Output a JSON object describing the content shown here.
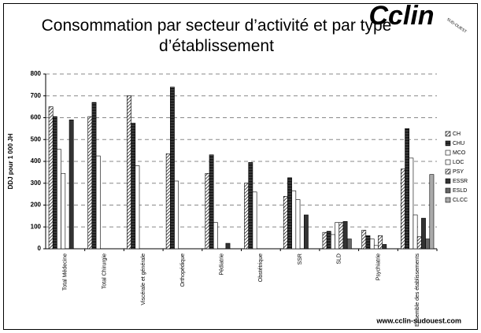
{
  "chart_data": {
    "type": "bar",
    "title": "Consommation par secteur d’activité et par type d’établissement",
    "y_label": "DDJ pour 1 000 JH",
    "categories": [
      "Total Médecine",
      "Total Chirurgie",
      "Viscérale et générale",
      "Orthopédique",
      "Pédiatrie",
      "Obstétrique",
      "SSR",
      "SLD",
      "Psychiatrie",
      "Ensemble des établissements"
    ],
    "series": [
      {
        "name": "CH",
        "color": "#ffffff",
        "pattern": "diagonal",
        "values": [
          650,
          605,
          700,
          435,
          345,
          300,
          240,
          75,
          85,
          365
        ]
      },
      {
        "name": "CHU",
        "color": "#555555",
        "pattern": "horizontal",
        "values": [
          605,
          670,
          575,
          740,
          430,
          395,
          325,
          80,
          60,
          550
        ]
      },
      {
        "name": "MCO",
        "color": "#ffffff",
        "values": [
          455,
          425,
          380,
          310,
          120,
          260,
          265,
          65,
          45,
          415
        ]
      },
      {
        "name": "LOC",
        "color": "#ffffff",
        "values": [
          345,
          null,
          null,
          null,
          null,
          null,
          225,
          120,
          15,
          155
        ]
      },
      {
        "name": "PSY",
        "color": "#ffffff",
        "pattern": "diagonal",
        "values": [
          null,
          null,
          null,
          null,
          null,
          null,
          null,
          120,
          60,
          55
        ]
      },
      {
        "name": "ESSR",
        "color": "#333333",
        "values": [
          590,
          null,
          null,
          null,
          25,
          null,
          155,
          125,
          20,
          140
        ]
      },
      {
        "name": "ESLD",
        "color": "#666666",
        "values": [
          null,
          null,
          null,
          null,
          null,
          null,
          null,
          45,
          null,
          45
        ]
      },
      {
        "name": "CLCC",
        "color": "#aaaaaa",
        "values": [
          null,
          null,
          null,
          null,
          null,
          null,
          null,
          null,
          null,
          340
        ]
      }
    ],
    "ylim": [
      0,
      800
    ],
    "yticks": [
      0,
      100,
      200,
      300,
      400,
      500,
      600,
      700,
      800
    ],
    "grid": true,
    "legend": "right"
  },
  "logo": {
    "text": "Cclin",
    "subtext": "SUD-OUEST"
  },
  "footer": "www.cclin-sudouest.com"
}
